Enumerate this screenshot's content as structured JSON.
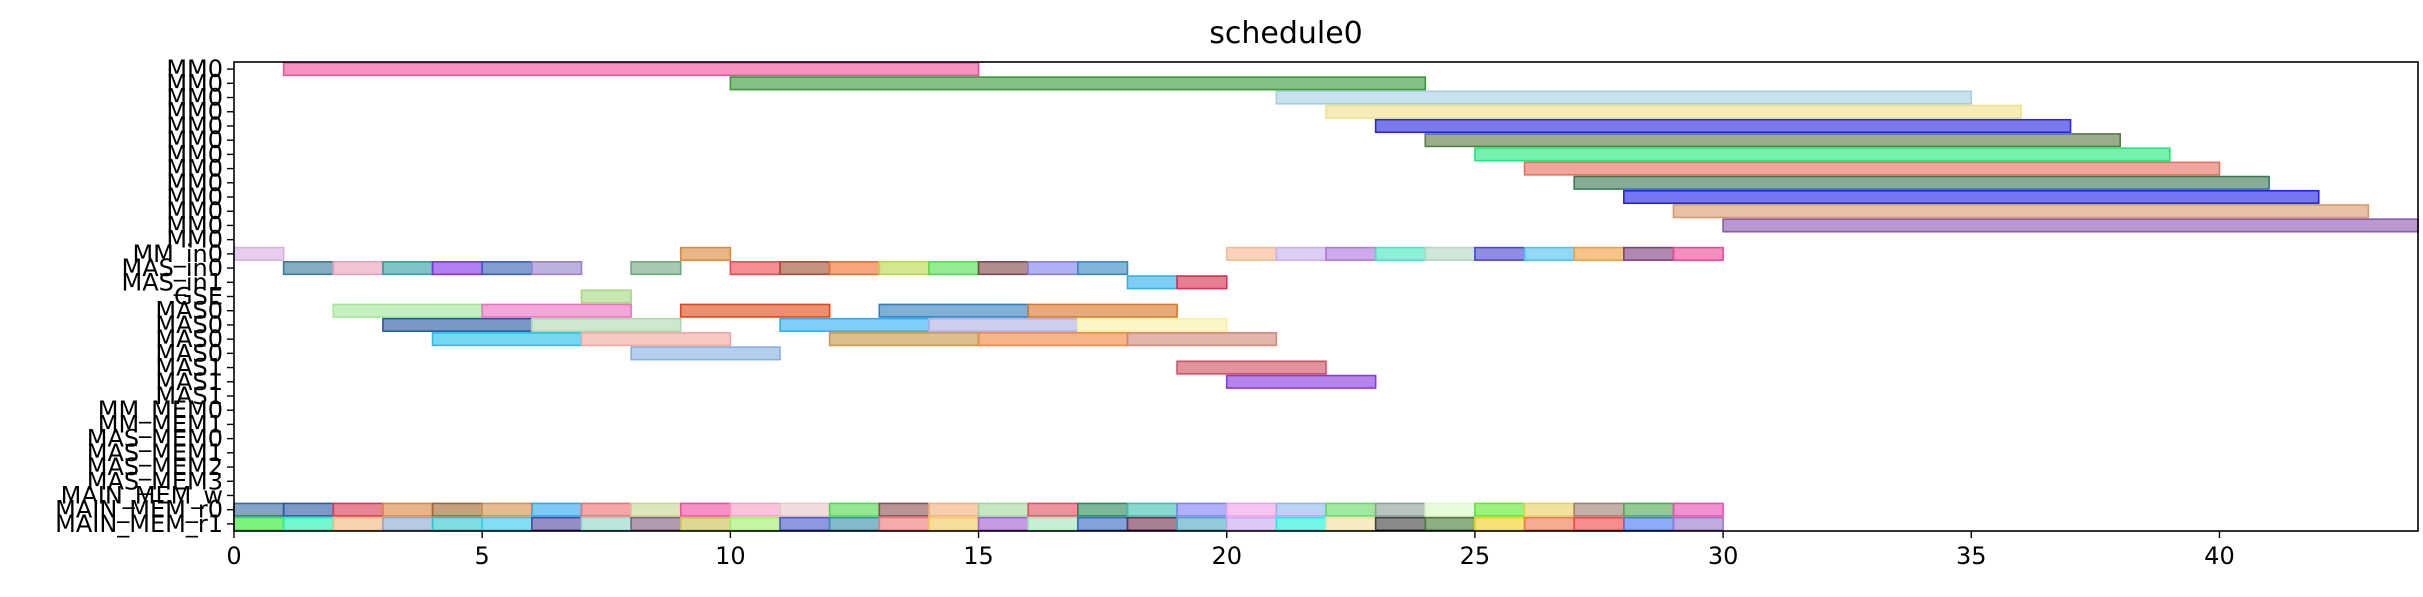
{
  "chart_data": {
    "type": "gantt",
    "title": "schedule0",
    "xlim": [
      0,
      44
    ],
    "x_ticks": [
      0,
      5,
      10,
      15,
      20,
      25,
      30,
      35,
      40
    ],
    "y_labels": [
      "MM0",
      "MM0",
      "MM0",
      "MM0",
      "MM0",
      "MM0",
      "MM0",
      "MM0",
      "MM0",
      "MM0",
      "MM0",
      "MM0",
      "MM0",
      "MM_in0",
      "MAS_in0",
      "MAS_in1",
      "GSE",
      "MAS0",
      "MAS0",
      "MAS0",
      "MAS0",
      "MAS1",
      "MAS1",
      "MAS1",
      "MM_MEM0",
      "MM_MEM1",
      "MAS_MEM0",
      "MAS_MEM1",
      "MAS_MEM2",
      "MAS_MEM3",
      "MAIN_MEM_w",
      "MAIN_MEM_r0",
      "MAIN_MEM_r1"
    ],
    "tasks": [
      {
        "row": 0,
        "start": 1,
        "end": 15,
        "color": "#f0509a"
      },
      {
        "row": 1,
        "start": 10,
        "end": 24,
        "color": "#3a9a3a"
      },
      {
        "row": 2,
        "start": 21,
        "end": 35,
        "color": "#a8cfe0"
      },
      {
        "row": 3,
        "start": 22,
        "end": 36,
        "color": "#f0e08a"
      },
      {
        "row": 4,
        "start": 23,
        "end": 37,
        "color": "#2828e0"
      },
      {
        "row": 5,
        "start": 24,
        "end": 38,
        "color": "#5a7a45"
      },
      {
        "row": 6,
        "start": 25,
        "end": 39,
        "color": "#22e87a"
      },
      {
        "row": 7,
        "start": 26,
        "end": 40,
        "color": "#e87060"
      },
      {
        "row": 8,
        "start": 27,
        "end": 41,
        "color": "#3a7a55"
      },
      {
        "row": 9,
        "start": 28,
        "end": 42,
        "color": "#2020e8"
      },
      {
        "row": 10,
        "start": 29,
        "end": 43,
        "color": "#d89a70"
      },
      {
        "row": 11,
        "start": 30,
        "end": 44,
        "color": "#8a5ab0"
      },
      {
        "row": 13,
        "start": 0,
        "end": 1,
        "color": "#d8b0e0"
      },
      {
        "row": 13,
        "start": 9,
        "end": 10,
        "color": "#d88a40"
      },
      {
        "row": 13,
        "start": 20,
        "end": 21,
        "color": "#f8b890"
      },
      {
        "row": 13,
        "start": 21,
        "end": 22,
        "color": "#c8b0f0"
      },
      {
        "row": 13,
        "start": 22,
        "end": 23,
        "color": "#b078e0"
      },
      {
        "row": 13,
        "start": 23,
        "end": 24,
        "color": "#40e8c0"
      },
      {
        "row": 13,
        "start": 24,
        "end": 25,
        "color": "#b0d8c0"
      },
      {
        "row": 13,
        "start": 25,
        "end": 26,
        "color": "#4848d8"
      },
      {
        "row": 13,
        "start": 26,
        "end": 27,
        "color": "#50c0f0"
      },
      {
        "row": 13,
        "start": 27,
        "end": 28,
        "color": "#f0a040"
      },
      {
        "row": 13,
        "start": 28,
        "end": 29,
        "color": "#804080"
      },
      {
        "row": 13,
        "start": 29,
        "end": 30,
        "color": "#f04898"
      },
      {
        "row": 14,
        "start": 1,
        "end": 2,
        "color": "#3a7a98"
      },
      {
        "row": 14,
        "start": 2,
        "end": 3,
        "color": "#e8a0b8"
      },
      {
        "row": 14,
        "start": 3,
        "end": 4,
        "color": "#30a0a0"
      },
      {
        "row": 14,
        "start": 4,
        "end": 5,
        "color": "#8030e8"
      },
      {
        "row": 14,
        "start": 5,
        "end": 6,
        "color": "#3860b0"
      },
      {
        "row": 14,
        "start": 6,
        "end": 7,
        "color": "#9880d0"
      },
      {
        "row": 14,
        "start": 8,
        "end": 9,
        "color": "#70a880"
      },
      {
        "row": 14,
        "start": 10,
        "end": 11,
        "color": "#f04850"
      },
      {
        "row": 14,
        "start": 11,
        "end": 12,
        "color": "#a05030"
      },
      {
        "row": 14,
        "start": 12,
        "end": 13,
        "color": "#f07030"
      },
      {
        "row": 14,
        "start": 13,
        "end": 14,
        "color": "#b8d848"
      },
      {
        "row": 14,
        "start": 14,
        "end": 15,
        "color": "#50e050"
      },
      {
        "row": 14,
        "start": 15,
        "end": 16,
        "color": "#804848"
      },
      {
        "row": 14,
        "start": 16,
        "end": 17,
        "color": "#8080f0"
      },
      {
        "row": 14,
        "start": 17,
        "end": 18,
        "color": "#3888c0"
      },
      {
        "row": 15,
        "start": 18,
        "end": 19,
        "color": "#30b0f0"
      },
      {
        "row": 15,
        "start": 19,
        "end": 20,
        "color": "#d83050"
      },
      {
        "row": 16,
        "start": 7,
        "end": 8,
        "color": "#a8d880"
      },
      {
        "row": 17,
        "start": 2,
        "end": 5,
        "color": "#a0e898"
      },
      {
        "row": 17,
        "start": 5,
        "end": 8,
        "color": "#f070c0"
      },
      {
        "row": 17,
        "start": 9,
        "end": 12,
        "color": "#e04818"
      },
      {
        "row": 17,
        "start": 13,
        "end": 16,
        "color": "#3080c0"
      },
      {
        "row": 17,
        "start": 16,
        "end": 19,
        "color": "#d87828"
      },
      {
        "row": 18,
        "start": 3,
        "end": 6,
        "color": "#2858a0"
      },
      {
        "row": 18,
        "start": 6,
        "end": 9,
        "color": "#b0d8b0"
      },
      {
        "row": 18,
        "start": 11,
        "end": 14,
        "color": "#30b0f0"
      },
      {
        "row": 18,
        "start": 14,
        "end": 17,
        "color": "#b0b0e0"
      },
      {
        "row": 18,
        "start": 17,
        "end": 20,
        "color": "#f8f0a0"
      },
      {
        "row": 19,
        "start": 4,
        "end": 7,
        "color": "#20c0e8"
      },
      {
        "row": 19,
        "start": 7,
        "end": 10,
        "color": "#f0a8a0"
      },
      {
        "row": 19,
        "start": 12,
        "end": 15,
        "color": "#c89848"
      },
      {
        "row": 19,
        "start": 15,
        "end": 18,
        "color": "#f08840"
      },
      {
        "row": 19,
        "start": 18,
        "end": 21,
        "color": "#d08878"
      },
      {
        "row": 20,
        "start": 8,
        "end": 11,
        "color": "#88b0e0"
      },
      {
        "row": 21,
        "start": 19,
        "end": 22,
        "color": "#d05060"
      },
      {
        "row": 22,
        "start": 20,
        "end": 23,
        "color": "#8838e0"
      },
      {
        "row": 31,
        "start": 0,
        "end": 1,
        "color": "#3a6aa0"
      },
      {
        "row": 31,
        "start": 1,
        "end": 2,
        "color": "#2a5aa0"
      },
      {
        "row": 31,
        "start": 2,
        "end": 3,
        "color": "#d83850"
      },
      {
        "row": 31,
        "start": 3,
        "end": 4,
        "color": "#d88840"
      },
      {
        "row": 31,
        "start": 4,
        "end": 5,
        "color": "#a06830"
      },
      {
        "row": 31,
        "start": 5,
        "end": 6,
        "color": "#d89050"
      },
      {
        "row": 31,
        "start": 6,
        "end": 7,
        "color": "#30a8f0"
      },
      {
        "row": 31,
        "start": 7,
        "end": 8,
        "color": "#f07070"
      },
      {
        "row": 31,
        "start": 8,
        "end": 9,
        "color": "#c8d890"
      },
      {
        "row": 31,
        "start": 9,
        "end": 10,
        "color": "#f050a0"
      },
      {
        "row": 31,
        "start": 10,
        "end": 11,
        "color": "#f8a0c8"
      },
      {
        "row": 31,
        "start": 11,
        "end": 12,
        "color": "#e8c8c8"
      },
      {
        "row": 31,
        "start": 12,
        "end": 13,
        "color": "#50d850"
      },
      {
        "row": 31,
        "start": 13,
        "end": 14,
        "color": "#905050"
      },
      {
        "row": 31,
        "start": 14,
        "end": 15,
        "color": "#f0b080"
      },
      {
        "row": 31,
        "start": 15,
        "end": 16,
        "color": "#a0d8a0"
      },
      {
        "row": 31,
        "start": 16,
        "end": 17,
        "color": "#e05060"
      },
      {
        "row": 31,
        "start": 17,
        "end": 18,
        "color": "#2a8a5a"
      },
      {
        "row": 31,
        "start": 18,
        "end": 19,
        "color": "#40c0b0"
      },
      {
        "row": 31,
        "start": 19,
        "end": 20,
        "color": "#8080f8"
      },
      {
        "row": 31,
        "start": 20,
        "end": 21,
        "color": "#f0a0e8"
      },
      {
        "row": 31,
        "start": 21,
        "end": 22,
        "color": "#90b8f0"
      },
      {
        "row": 31,
        "start": 22,
        "end": 23,
        "color": "#68d868"
      },
      {
        "row": 31,
        "start": 23,
        "end": 24,
        "color": "#90a098"
      },
      {
        "row": 31,
        "start": 24,
        "end": 25,
        "color": "#d8f8c8"
      },
      {
        "row": 31,
        "start": 25,
        "end": 26,
        "color": "#60e830"
      },
      {
        "row": 31,
        "start": 26,
        "end": 27,
        "color": "#e8d060"
      },
      {
        "row": 31,
        "start": 27,
        "end": 28,
        "color": "#a08070"
      },
      {
        "row": 31,
        "start": 28,
        "end": 29,
        "color": "#50a850"
      },
      {
        "row": 31,
        "start": 29,
        "end": 30,
        "color": "#e850b0"
      },
      {
        "row": 32,
        "start": 0,
        "end": 1,
        "color": "#30e830"
      },
      {
        "row": 32,
        "start": 1,
        "end": 2,
        "color": "#20f0b0"
      },
      {
        "row": 32,
        "start": 2,
        "end": 3,
        "color": "#f0b880"
      },
      {
        "row": 32,
        "start": 3,
        "end": 4,
        "color": "#90a8d0"
      },
      {
        "row": 32,
        "start": 4,
        "end": 5,
        "color": "#30c8d0"
      },
      {
        "row": 32,
        "start": 5,
        "end": 6,
        "color": "#38c8e8"
      },
      {
        "row": 32,
        "start": 6,
        "end": 7,
        "color": "#5048a0"
      },
      {
        "row": 32,
        "start": 7,
        "end": 8,
        "color": "#90d8c8"
      },
      {
        "row": 32,
        "start": 8,
        "end": 9,
        "color": "#806080"
      },
      {
        "row": 32,
        "start": 9,
        "end": 10,
        "color": "#c8c050"
      },
      {
        "row": 32,
        "start": 10,
        "end": 11,
        "color": "#a0f070"
      },
      {
        "row": 32,
        "start": 11,
        "end": 12,
        "color": "#4858c8"
      },
      {
        "row": 32,
        "start": 12,
        "end": 13,
        "color": "#3890a8"
      },
      {
        "row": 32,
        "start": 13,
        "end": 14,
        "color": "#f07878"
      },
      {
        "row": 32,
        "start": 14,
        "end": 15,
        "color": "#f0c860"
      },
      {
        "row": 32,
        "start": 15,
        "end": 16,
        "color": "#a060d0"
      },
      {
        "row": 32,
        "start": 16,
        "end": 17,
        "color": "#a0e8b8"
      },
      {
        "row": 32,
        "start": 17,
        "end": 18,
        "color": "#3868c0"
      },
      {
        "row": 32,
        "start": 18,
        "end": 19,
        "color": "#703050"
      },
      {
        "row": 32,
        "start": 19,
        "end": 20,
        "color": "#50a8c0"
      },
      {
        "row": 32,
        "start": 20,
        "end": 21,
        "color": "#c8a8f0"
      },
      {
        "row": 32,
        "start": 21,
        "end": 22,
        "color": "#20f0d8"
      },
      {
        "row": 32,
        "start": 22,
        "end": 23,
        "color": "#f0e0a0"
      },
      {
        "row": 32,
        "start": 23,
        "end": 24,
        "color": "#404040"
      },
      {
        "row": 32,
        "start": 24,
        "end": 25,
        "color": "#4a7a3a"
      },
      {
        "row": 32,
        "start": 25,
        "end": 26,
        "color": "#f0d020"
      },
      {
        "row": 32,
        "start": 26,
        "end": 27,
        "color": "#f07850"
      },
      {
        "row": 32,
        "start": 27,
        "end": 28,
        "color": "#f04848"
      },
      {
        "row": 32,
        "start": 28,
        "end": 29,
        "color": "#4878f0"
      },
      {
        "row": 32,
        "start": 29,
        "end": 30,
        "color": "#9878c8"
      }
    ]
  }
}
